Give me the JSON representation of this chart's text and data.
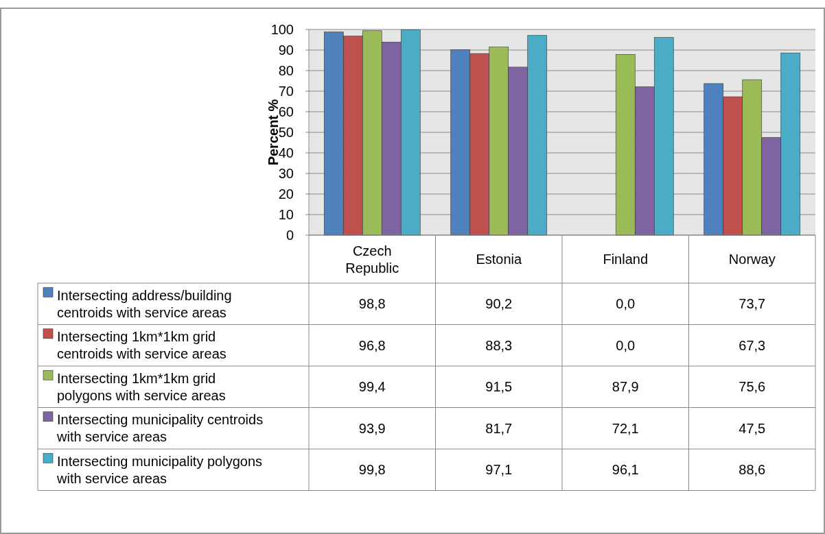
{
  "chart_data": {
    "type": "bar",
    "ylabel": "Percent %",
    "categories": [
      "Czech\nRepublic",
      "Estonia",
      "Finland",
      "Norway"
    ],
    "ylim": [
      0,
      100
    ],
    "yticks": [
      0,
      10,
      20,
      30,
      40,
      50,
      60,
      70,
      80,
      90,
      100
    ],
    "grid": "y",
    "legend": "bottom",
    "series": [
      {
        "name": "Intersecting address/building\ncentroids with service areas",
        "color": "#4f81bd",
        "values": [
          98.8,
          90.2,
          0.0,
          73.7
        ],
        "value_labels": [
          "98,8",
          "90,2",
          "0,0",
          "73,7"
        ]
      },
      {
        "name": "Intersecting 1km*1km grid\ncentroids with service areas",
        "color": "#c0504d",
        "values": [
          96.8,
          88.3,
          0.0,
          67.3
        ],
        "value_labels": [
          "96,8",
          "88,3",
          "0,0",
          "67,3"
        ]
      },
      {
        "name": "Intersecting 1km*1km grid\npolygons with service areas",
        "color": "#9bbb59",
        "values": [
          99.4,
          91.5,
          87.9,
          75.6
        ],
        "value_labels": [
          "99,4",
          "91,5",
          "87,9",
          "75,6"
        ]
      },
      {
        "name": "Intersecting municipality centroids\nwith service areas",
        "color": "#8064a2",
        "values": [
          93.9,
          81.7,
          72.1,
          47.5
        ],
        "value_labels": [
          "93,9",
          "81,7",
          "72,1",
          "47,5"
        ]
      },
      {
        "name": "Intersecting municipality polygons\nwith service areas",
        "color": "#4bacc6",
        "values": [
          99.8,
          97.1,
          96.1,
          88.6
        ],
        "value_labels": [
          "99,8",
          "97,1",
          "96,1",
          "88,6"
        ]
      }
    ]
  }
}
